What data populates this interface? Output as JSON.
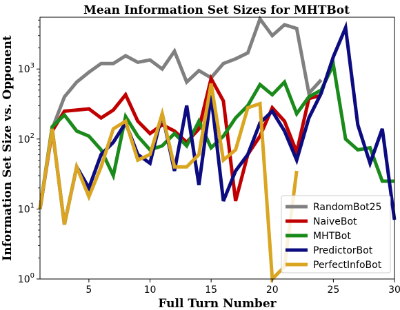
{
  "chart_data": {
    "type": "line",
    "title": "Mean Information Set Sizes for MHTBot",
    "xlabel": "Full Turn Number",
    "ylabel": "Information Set Size vs. Opponent",
    "xlim": [
      1,
      30
    ],
    "ylim": [
      1,
      5500
    ],
    "yscale": "log",
    "x_ticks": [
      5,
      10,
      15,
      20,
      25,
      30
    ],
    "y_ticks": [
      1,
      10,
      100,
      1000
    ],
    "y_tick_labels": [
      {
        "base": "10",
        "exp": "0"
      },
      {
        "base": "10",
        "exp": "1"
      },
      {
        "base": "10",
        "exp": "2"
      },
      {
        "base": "10",
        "exp": "3"
      }
    ],
    "grid": false,
    "legend_position": "lower-right",
    "series": [
      {
        "name": "RandomBot25",
        "color": "#808080",
        "points": [
          [
            1,
            10
          ],
          [
            2,
            140
          ],
          [
            3,
            400
          ],
          [
            4,
            650
          ],
          [
            5,
            900
          ],
          [
            6,
            1200
          ],
          [
            7,
            1200
          ],
          [
            8,
            1550
          ],
          [
            9,
            1250
          ],
          [
            10,
            1350
          ],
          [
            11,
            1000
          ],
          [
            12,
            1800
          ],
          [
            13,
            650
          ],
          [
            14,
            950
          ],
          [
            15,
            750
          ],
          [
            16,
            1200
          ],
          [
            17,
            1400
          ],
          [
            18,
            1700
          ],
          [
            19,
            5200
          ],
          [
            20,
            3000
          ],
          [
            21,
            4300
          ],
          [
            22,
            3800
          ],
          [
            23,
            450
          ],
          [
            24,
            700
          ]
        ]
      },
      {
        "name": "NaiveBot",
        "color": "#c00000",
        "points": [
          [
            1,
            10
          ],
          [
            2,
            130
          ],
          [
            3,
            250
          ],
          [
            4,
            260
          ],
          [
            5,
            270
          ],
          [
            6,
            200
          ],
          [
            7,
            260
          ],
          [
            8,
            430
          ],
          [
            9,
            180
          ],
          [
            10,
            120
          ],
          [
            11,
            160
          ],
          [
            12,
            130
          ],
          [
            13,
            90
          ],
          [
            14,
            140
          ],
          [
            15,
            730
          ],
          [
            16,
            350
          ],
          [
            17,
            13
          ],
          [
            18,
            60
          ],
          [
            19,
            110
          ],
          [
            20,
            280
          ],
          [
            21,
            180
          ],
          [
            22,
            65
          ],
          [
            23,
            380
          ],
          [
            24,
            420
          ]
        ]
      },
      {
        "name": "MHTBot",
        "color": "#1a8a1a",
        "points": [
          [
            1,
            10
          ],
          [
            2,
            150
          ],
          [
            3,
            220
          ],
          [
            4,
            130
          ],
          [
            5,
            110
          ],
          [
            6,
            70
          ],
          [
            7,
            30
          ],
          [
            8,
            210
          ],
          [
            9,
            110
          ],
          [
            10,
            70
          ],
          [
            11,
            80
          ],
          [
            12,
            120
          ],
          [
            13,
            80
          ],
          [
            14,
            180
          ],
          [
            15,
            75
          ],
          [
            16,
            110
          ],
          [
            17,
            200
          ],
          [
            18,
            300
          ],
          [
            19,
            600
          ],
          [
            20,
            430
          ],
          [
            21,
            650
          ],
          [
            22,
            230
          ],
          [
            23,
            400
          ],
          [
            24,
            500
          ],
          [
            25,
            1150
          ],
          [
            26,
            100
          ],
          [
            27,
            70
          ],
          [
            28,
            75
          ],
          [
            29,
            25
          ],
          [
            30,
            25
          ]
        ]
      },
      {
        "name": "PredictorBot",
        "color": "#0c0c80",
        "points": [
          [
            1,
            10
          ],
          [
            2,
            140
          ],
          [
            3,
            6
          ],
          [
            4,
            40
          ],
          [
            5,
            20
          ],
          [
            6,
            60
          ],
          [
            7,
            90
          ],
          [
            8,
            170
          ],
          [
            9,
            60
          ],
          [
            10,
            45
          ],
          [
            11,
            230
          ],
          [
            12,
            35
          ],
          [
            13,
            300
          ],
          [
            14,
            22
          ],
          [
            15,
            420
          ],
          [
            16,
            13
          ],
          [
            17,
            35
          ],
          [
            18,
            60
          ],
          [
            19,
            170
          ],
          [
            20,
            250
          ],
          [
            21,
            130
          ],
          [
            22,
            50
          ],
          [
            23,
            200
          ],
          [
            24,
            450
          ],
          [
            25,
            1500
          ],
          [
            26,
            3900
          ],
          [
            27,
            160
          ],
          [
            28,
            45
          ],
          [
            29,
            140
          ],
          [
            30,
            7
          ]
        ]
      },
      {
        "name": "PerfectInfoBot",
        "color": "#daa520",
        "points": [
          [
            1,
            10
          ],
          [
            2,
            140
          ],
          [
            3,
            6
          ],
          [
            4,
            40
          ],
          [
            5,
            15
          ],
          [
            6,
            40
          ],
          [
            7,
            140
          ],
          [
            8,
            180
          ],
          [
            9,
            50
          ],
          [
            10,
            60
          ],
          [
            11,
            230
          ],
          [
            12,
            40
          ],
          [
            13,
            40
          ],
          [
            14,
            60
          ],
          [
            15,
            620
          ],
          [
            16,
            50
          ],
          [
            17,
            70
          ],
          [
            18,
            280
          ],
          [
            19,
            320
          ],
          [
            20,
            1
          ],
          [
            21,
            1.5
          ],
          [
            22,
            35
          ]
        ]
      }
    ]
  }
}
